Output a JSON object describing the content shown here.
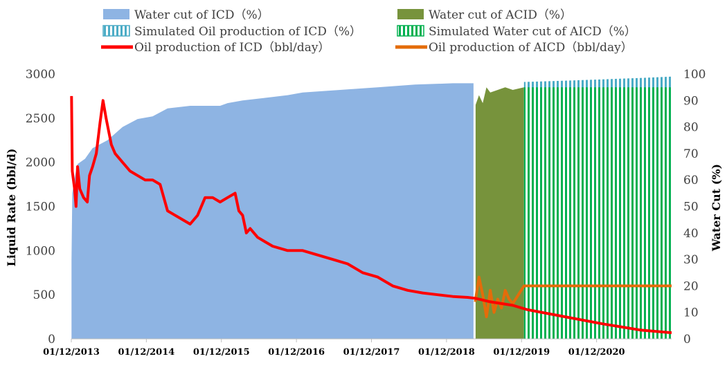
{
  "chart_data": {
    "type": "area",
    "legend": [
      {
        "label": "Water cut of ICD（%）",
        "kind": "area",
        "color": "#8eb4e3"
      },
      {
        "label": "Water cut of ACID（%）",
        "kind": "area",
        "color": "#77933c"
      },
      {
        "label": "Simulated Oil production of ICD（%）",
        "kind": "hatch",
        "color": "#4bacc6"
      },
      {
        "label": "Simulated Water cut of AICD（%）",
        "kind": "hatch",
        "color": "#00b050"
      },
      {
        "label": "Oil production of ICD（bbl/day）",
        "kind": "line",
        "color": "#ff0000"
      },
      {
        "label": "Oil production of AICD（bbl/day）",
        "kind": "line",
        "color": "#e46c0a"
      }
    ],
    "ylabel": "Liquid Rate (bbl/d)",
    "y2label": "Water Cut (%)",
    "ylim": [
      0,
      3000
    ],
    "y2lim": [
      0,
      100
    ],
    "y_ticks": [
      "0",
      "500",
      "1000",
      "1500",
      "2000",
      "2500",
      "3000"
    ],
    "y2_ticks": [
      "0",
      "10",
      "20",
      "30",
      "40",
      "50",
      "60",
      "70",
      "80",
      "90",
      "100"
    ],
    "x_range": [
      2013.917,
      2021.917
    ],
    "x_ticks": [
      {
        "label": "01/12/2013",
        "x": 2013.917
      },
      {
        "label": "01/12/2014",
        "x": 2014.917
      },
      {
        "label": "01/12/2015",
        "x": 2015.917
      },
      {
        "label": "01/12/2016",
        "x": 2016.917
      },
      {
        "label": "01/12/2017",
        "x": 2017.917
      },
      {
        "label": "01/12/2018",
        "x": 2018.917
      },
      {
        "label": "01/12/2019",
        "x": 2019.917
      },
      {
        "label": "01/12/2020",
        "x": 2020.917
      }
    ],
    "series": [
      {
        "name": "Water cut of ICD（%）",
        "axis": "right",
        "points": [
          [
            2013.92,
            30
          ],
          [
            2013.93,
            55
          ],
          [
            2013.97,
            62
          ],
          [
            2014.0,
            66
          ],
          [
            2014.1,
            68
          ],
          [
            2014.2,
            72
          ],
          [
            2014.4,
            75
          ],
          [
            2014.6,
            80
          ],
          [
            2014.8,
            83
          ],
          [
            2015.0,
            84
          ],
          [
            2015.2,
            87
          ],
          [
            2015.5,
            88
          ],
          [
            2015.7,
            88
          ],
          [
            2015.9,
            88
          ],
          [
            2016.0,
            89
          ],
          [
            2016.2,
            90
          ],
          [
            2016.5,
            91
          ],
          [
            2016.8,
            92
          ],
          [
            2017.0,
            93
          ],
          [
            2017.5,
            94
          ],
          [
            2018.0,
            95
          ],
          [
            2018.5,
            96
          ],
          [
            2019.0,
            96.5
          ],
          [
            2019.3,
            96.5
          ]
        ]
      },
      {
        "name": "Water cut of ACID（%）",
        "axis": "right",
        "points": [
          [
            2019.3,
            88
          ],
          [
            2019.35,
            92
          ],
          [
            2019.4,
            89
          ],
          [
            2019.45,
            95
          ],
          [
            2019.5,
            93
          ],
          [
            2019.6,
            94
          ],
          [
            2019.7,
            95
          ],
          [
            2019.8,
            94
          ],
          [
            2019.95,
            95
          ]
        ]
      },
      {
        "name": "Simulated Oil production of ICD（%）",
        "axis": "right",
        "points": [
          [
            2019.95,
            97
          ],
          [
            2020.5,
            97.5
          ],
          [
            2021.0,
            98
          ],
          [
            2021.5,
            98.5
          ],
          [
            2021.917,
            99
          ]
        ]
      },
      {
        "name": "Simulated Water cut of AICD（%）",
        "axis": "right",
        "points": [
          [
            2019.95,
            95
          ],
          [
            2021.917,
            95
          ]
        ]
      },
      {
        "name": "Oil production of ICD（bbl/day）",
        "axis": "left",
        "points": [
          [
            2013.92,
            2750
          ],
          [
            2013.93,
            1900
          ],
          [
            2013.96,
            1700
          ],
          [
            2013.98,
            1500
          ],
          [
            2014.0,
            1950
          ],
          [
            2014.03,
            1700
          ],
          [
            2014.08,
            1600
          ],
          [
            2014.13,
            1550
          ],
          [
            2014.16,
            1850
          ],
          [
            2014.2,
            1950
          ],
          [
            2014.25,
            2100
          ],
          [
            2014.3,
            2450
          ],
          [
            2014.34,
            2700
          ],
          [
            2014.38,
            2500
          ],
          [
            2014.45,
            2200
          ],
          [
            2014.5,
            2100
          ],
          [
            2014.6,
            2000
          ],
          [
            2014.7,
            1900
          ],
          [
            2014.8,
            1850
          ],
          [
            2014.9,
            1800
          ],
          [
            2015.0,
            1800
          ],
          [
            2015.1,
            1750
          ],
          [
            2015.2,
            1450
          ],
          [
            2015.3,
            1400
          ],
          [
            2015.4,
            1350
          ],
          [
            2015.5,
            1300
          ],
          [
            2015.6,
            1400
          ],
          [
            2015.7,
            1600
          ],
          [
            2015.8,
            1600
          ],
          [
            2015.9,
            1550
          ],
          [
            2016.0,
            1600
          ],
          [
            2016.1,
            1650
          ],
          [
            2016.15,
            1450
          ],
          [
            2016.2,
            1400
          ],
          [
            2016.25,
            1200
          ],
          [
            2016.3,
            1250
          ],
          [
            2016.4,
            1150
          ],
          [
            2016.5,
            1100
          ],
          [
            2016.6,
            1050
          ],
          [
            2016.8,
            1000
          ],
          [
            2017.0,
            1000
          ],
          [
            2017.2,
            950
          ],
          [
            2017.4,
            900
          ],
          [
            2017.6,
            850
          ],
          [
            2017.8,
            750
          ],
          [
            2018.0,
            700
          ],
          [
            2018.2,
            600
          ],
          [
            2018.4,
            550
          ],
          [
            2018.6,
            520
          ],
          [
            2018.8,
            500
          ],
          [
            2019.0,
            480
          ],
          [
            2019.2,
            470
          ],
          [
            2019.3,
            460
          ],
          [
            2019.5,
            420
          ],
          [
            2019.8,
            380
          ],
          [
            2020.0,
            330
          ],
          [
            2020.5,
            250
          ],
          [
            2021.0,
            170
          ],
          [
            2021.5,
            100
          ],
          [
            2021.917,
            70
          ]
        ]
      },
      {
        "name": "Oil production of AICD（bbl/day）",
        "axis": "left",
        "points": [
          [
            2019.3,
            420
          ],
          [
            2019.35,
            700
          ],
          [
            2019.4,
            500
          ],
          [
            2019.45,
            250
          ],
          [
            2019.5,
            550
          ],
          [
            2019.55,
            300
          ],
          [
            2019.6,
            450
          ],
          [
            2019.65,
            350
          ],
          [
            2019.7,
            550
          ],
          [
            2019.75,
            450
          ],
          [
            2019.8,
            400
          ],
          [
            2019.95,
            600
          ],
          [
            2020.5,
            600
          ],
          [
            2021.0,
            600
          ],
          [
            2021.5,
            600
          ],
          [
            2021.917,
            600
          ]
        ]
      }
    ]
  }
}
